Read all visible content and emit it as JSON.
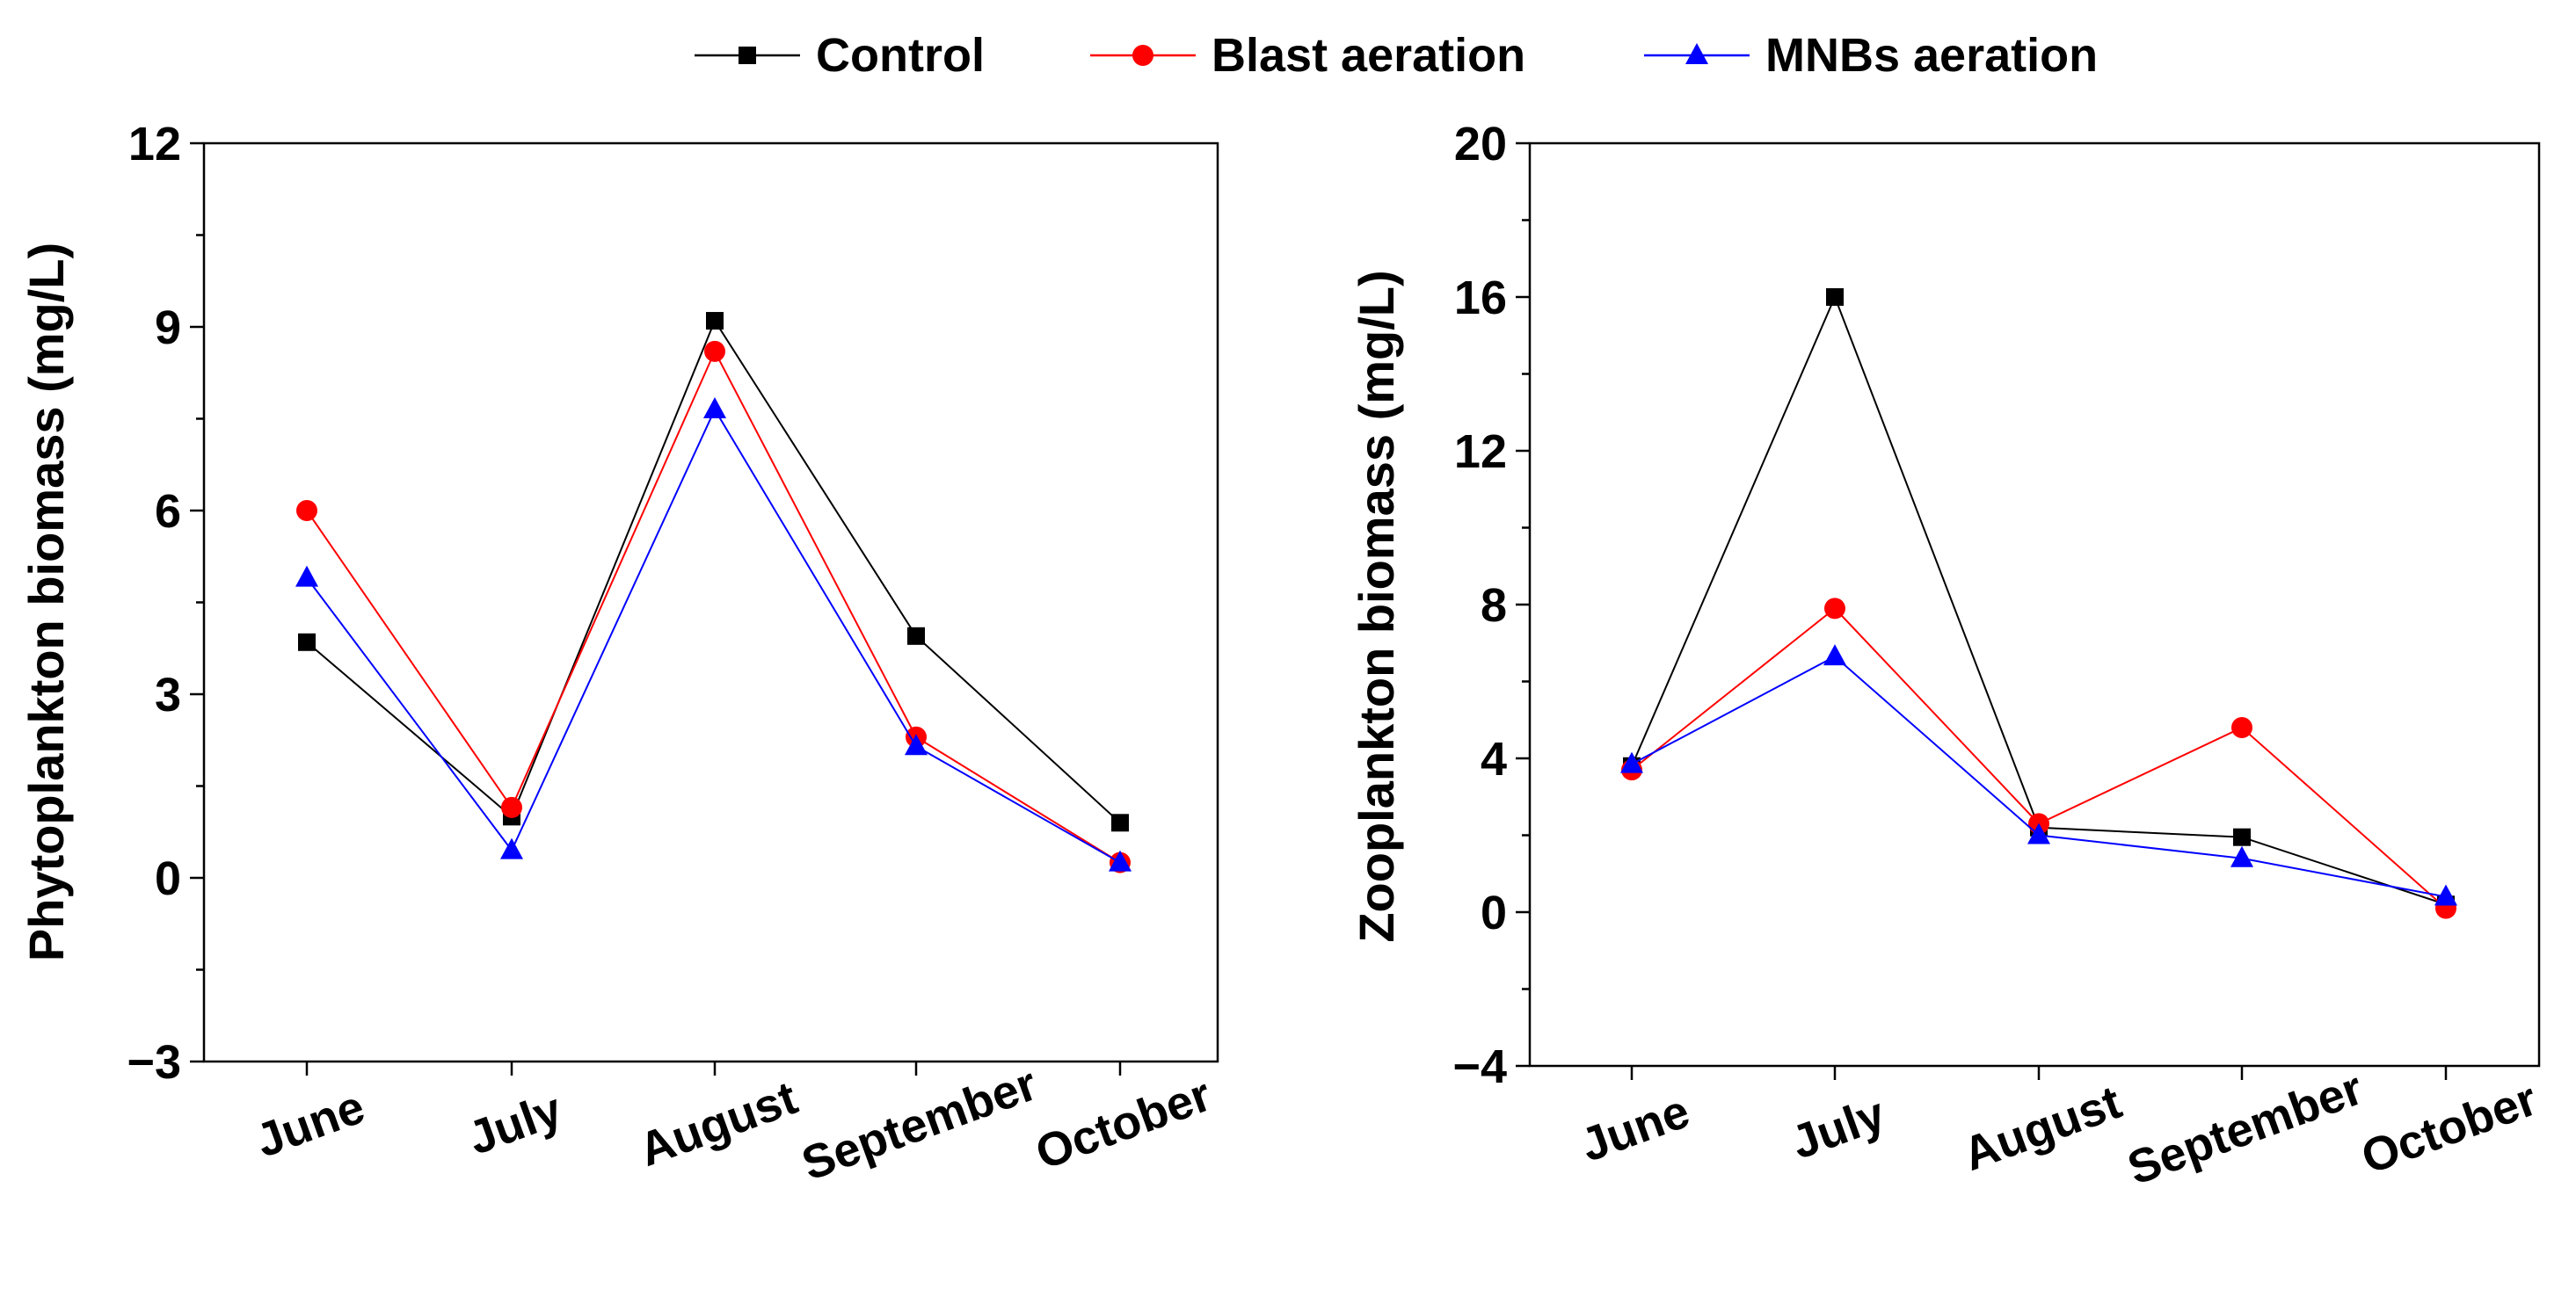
{
  "legend": {
    "placement": "top-center",
    "items": [
      {
        "series": "Control",
        "label": "Control",
        "color": "#000000",
        "marker": "square"
      },
      {
        "series": "Blast aeration",
        "label": "Blast aeration",
        "color": "#ff0000",
        "marker": "circle"
      },
      {
        "series": "MNBs aeration",
        "label": "MNBs aeration",
        "color": "#0000ff",
        "marker": "triangle"
      }
    ]
  },
  "chart_data": [
    {
      "type": "line",
      "title": "",
      "xlabel": "",
      "ylabel": "Phytoplankton biomass (mg/L)",
      "categories": [
        "June",
        "July",
        "August",
        "September",
        "October"
      ],
      "ylim": [
        -3,
        12
      ],
      "yticks": [
        -3,
        0,
        3,
        6,
        9,
        12
      ],
      "ytick_labels": [
        "−3",
        "0",
        "3",
        "6",
        "9",
        "12"
      ],
      "grid": false,
      "series": [
        {
          "name": "Control",
          "color": "#000000",
          "marker": "square",
          "values": [
            3.85,
            1.0,
            9.1,
            3.95,
            0.9
          ]
        },
        {
          "name": "Blast aeration",
          "color": "#ff0000",
          "marker": "circle",
          "values": [
            6.0,
            1.15,
            8.6,
            2.3,
            0.25
          ]
        },
        {
          "name": "MNBs aeration",
          "color": "#0000ff",
          "marker": "triangle",
          "values": [
            4.9,
            0.45,
            7.65,
            2.15,
            0.25
          ]
        }
      ]
    },
    {
      "type": "line",
      "title": "",
      "xlabel": "",
      "ylabel": "Zooplankton biomass (mg/L)",
      "categories": [
        "June",
        "July",
        "August",
        "September",
        "October"
      ],
      "ylim": [
        -4,
        20
      ],
      "yticks": [
        -4,
        0,
        4,
        8,
        12,
        16,
        20
      ],
      "ytick_labels": [
        "−4",
        "0",
        "4",
        "8",
        "12",
        "16",
        "20"
      ],
      "grid": false,
      "series": [
        {
          "name": "Control",
          "color": "#000000",
          "marker": "square",
          "values": [
            3.8,
            16.0,
            2.2,
            1.95,
            0.2
          ]
        },
        {
          "name": "Blast aeration",
          "color": "#ff0000",
          "marker": "circle",
          "values": [
            3.7,
            7.9,
            2.3,
            4.8,
            0.1
          ]
        },
        {
          "name": "MNBs aeration",
          "color": "#0000ff",
          "marker": "triangle",
          "values": [
            3.85,
            6.65,
            2.0,
            1.4,
            0.4
          ]
        }
      ]
    }
  ]
}
